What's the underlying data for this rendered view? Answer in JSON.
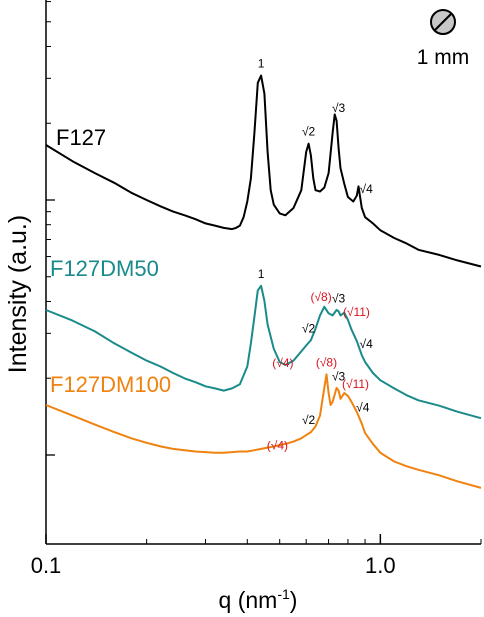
{
  "chart_data": {
    "type": "line",
    "title": "",
    "xlabel": "q (nm",
    "xlabel_sup": "-1",
    "xlabel_close": ")",
    "ylabel": "Intensity (a.u.)",
    "xscale": "log",
    "yscale": "log",
    "xlim": [
      0.1,
      2.0
    ],
    "xticks": [
      {
        "value": 0.1,
        "label": "0.1"
      },
      {
        "value": 1.0,
        "label": "1.0"
      }
    ],
    "grid": false,
    "series": [
      {
        "name": "F127",
        "color": "#000000",
        "offset": 0,
        "x": [
          0.1,
          0.12,
          0.14,
          0.16,
          0.18,
          0.2,
          0.22,
          0.24,
          0.26,
          0.28,
          0.3,
          0.32,
          0.34,
          0.36,
          0.37,
          0.38,
          0.39,
          0.4,
          0.41,
          0.42,
          0.43,
          0.44,
          0.45,
          0.46,
          0.47,
          0.48,
          0.5,
          0.52,
          0.55,
          0.58,
          0.6,
          0.61,
          0.62,
          0.63,
          0.64,
          0.66,
          0.68,
          0.7,
          0.72,
          0.73,
          0.74,
          0.75,
          0.76,
          0.78,
          0.8,
          0.83,
          0.85,
          0.86,
          0.87,
          0.88,
          0.9,
          0.95,
          1.0,
          1.1,
          1.2,
          1.3,
          1.5,
          1.7,
          2.0
        ],
        "y": [
          1.0,
          0.78,
          0.65,
          0.56,
          0.48,
          0.43,
          0.39,
          0.36,
          0.34,
          0.32,
          0.3,
          0.29,
          0.28,
          0.275,
          0.28,
          0.29,
          0.33,
          0.42,
          0.6,
          1.2,
          2.6,
          2.9,
          2.2,
          0.9,
          0.5,
          0.4,
          0.35,
          0.34,
          0.38,
          0.5,
          0.9,
          1.02,
          0.85,
          0.6,
          0.5,
          0.49,
          0.52,
          0.65,
          1.2,
          1.6,
          1.45,
          0.95,
          0.7,
          0.55,
          0.45,
          0.42,
          0.46,
          0.53,
          0.45,
          0.38,
          0.33,
          0.3,
          0.27,
          0.24,
          0.22,
          0.2,
          0.185,
          0.17,
          0.155
        ]
      },
      {
        "name": "F127DM50",
        "color": "#1a8a8a",
        "offset": 1,
        "x": [
          0.1,
          0.12,
          0.14,
          0.16,
          0.18,
          0.2,
          0.22,
          0.24,
          0.26,
          0.28,
          0.3,
          0.32,
          0.34,
          0.36,
          0.38,
          0.4,
          0.41,
          0.42,
          0.43,
          0.44,
          0.45,
          0.46,
          0.48,
          0.5,
          0.52,
          0.55,
          0.58,
          0.6,
          0.62,
          0.64,
          0.66,
          0.68,
          0.7,
          0.72,
          0.74,
          0.75,
          0.76,
          0.78,
          0.8,
          0.82,
          0.85,
          0.88,
          0.9,
          0.95,
          1.0,
          1.1,
          1.2,
          1.3,
          1.5,
          1.7,
          2.0
        ],
        "y": [
          1.0,
          0.85,
          0.72,
          0.6,
          0.52,
          0.46,
          0.42,
          0.38,
          0.35,
          0.33,
          0.31,
          0.3,
          0.29,
          0.3,
          0.32,
          0.42,
          0.6,
          0.9,
          1.35,
          1.45,
          1.15,
          0.8,
          0.55,
          0.45,
          0.43,
          0.46,
          0.53,
          0.58,
          0.63,
          0.75,
          0.92,
          1.05,
          0.95,
          0.92,
          1.0,
          0.98,
          0.92,
          0.96,
          0.86,
          0.74,
          0.62,
          0.5,
          0.45,
          0.38,
          0.34,
          0.3,
          0.27,
          0.25,
          0.23,
          0.21,
          0.19
        ]
      },
      {
        "name": "F127DM100",
        "color": "#f0820f",
        "offset": 2,
        "x": [
          0.1,
          0.12,
          0.14,
          0.16,
          0.18,
          0.2,
          0.22,
          0.24,
          0.26,
          0.28,
          0.3,
          0.32,
          0.34,
          0.36,
          0.38,
          0.4,
          0.42,
          0.44,
          0.46,
          0.48,
          0.5,
          0.52,
          0.55,
          0.58,
          0.6,
          0.62,
          0.64,
          0.66,
          0.68,
          0.69,
          0.7,
          0.71,
          0.72,
          0.74,
          0.75,
          0.76,
          0.78,
          0.8,
          0.82,
          0.85,
          0.88,
          0.9,
          0.95,
          1.0,
          1.1,
          1.2,
          1.3,
          1.5,
          1.7,
          2.0
        ],
        "y": [
          1.0,
          0.85,
          0.74,
          0.66,
          0.6,
          0.56,
          0.53,
          0.51,
          0.5,
          0.49,
          0.485,
          0.48,
          0.48,
          0.485,
          0.49,
          0.49,
          0.5,
          0.51,
          0.52,
          0.53,
          0.54,
          0.55,
          0.57,
          0.6,
          0.63,
          0.66,
          0.72,
          0.85,
          1.3,
          1.6,
          1.2,
          1.0,
          1.05,
          1.3,
          1.25,
          1.1,
          1.2,
          1.15,
          1.05,
          0.9,
          0.75,
          0.65,
          0.55,
          0.48,
          0.42,
          0.39,
          0.37,
          0.34,
          0.31,
          0.28
        ]
      }
    ],
    "legend": [
      {
        "name": "F127",
        "color": "#000000"
      },
      {
        "name": "F127DM50",
        "color": "#1a8a8a"
      },
      {
        "name": "F127DM100",
        "color": "#f0820f"
      }
    ],
    "annotations": [
      {
        "series": 0,
        "x": 0.44,
        "text": "1",
        "color": "#000000"
      },
      {
        "series": 0,
        "x": 0.61,
        "text": "√2",
        "color": "#000000"
      },
      {
        "series": 0,
        "x": 0.75,
        "text": "√3",
        "color": "#000000"
      },
      {
        "series": 0,
        "x": 0.87,
        "text": "√4",
        "color": "#000000"
      },
      {
        "series": 1,
        "x": 0.44,
        "text": "1",
        "color": "#000000"
      },
      {
        "series": 1,
        "x": 0.54,
        "text": "(√4)",
        "color": "#d9141e"
      },
      {
        "series": 1,
        "x": 0.61,
        "text": "√2",
        "color": "#000000"
      },
      {
        "series": 1,
        "x": 0.665,
        "text": "(√8)",
        "color": "#d9141e"
      },
      {
        "series": 1,
        "x": 0.75,
        "text": "√3",
        "color": "#000000"
      },
      {
        "series": 1,
        "x": 0.825,
        "text": "(√11)",
        "color": "#d9141e"
      },
      {
        "series": 1,
        "x": 0.87,
        "text": "√4",
        "color": "#000000"
      },
      {
        "series": 2,
        "x": 0.52,
        "text": "(√4)",
        "color": "#d9141e"
      },
      {
        "series": 2,
        "x": 0.61,
        "text": "√2",
        "color": "#000000"
      },
      {
        "series": 2,
        "x": 0.69,
        "text": "(√8)",
        "color": "#d9141e"
      },
      {
        "series": 2,
        "x": 0.75,
        "text": "√3",
        "color": "#000000"
      },
      {
        "series": 2,
        "x": 0.82,
        "text": "(√11)",
        "color": "#d9141e"
      },
      {
        "series": 2,
        "x": 0.85,
        "text": "√4",
        "color": "#000000"
      }
    ],
    "inset": {
      "label": "1 mm",
      "icon": "sample-disc-icon"
    }
  }
}
